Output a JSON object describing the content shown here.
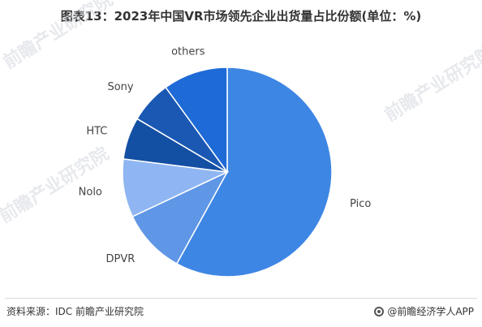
{
  "title": "图表13：2023年中国VR市场领先企业出货量占比份额(单位：%)",
  "footer": {
    "source": "资料来源：IDC 前瞻产业研究院",
    "brand": "@前瞻经济学人APP"
  },
  "watermarks": [
    "前瞻产业研究院",
    "前瞻产业研究院",
    "前瞻产业研究院"
  ],
  "chart_data": {
    "type": "pie",
    "title": "图表13：2023年中国VR市场领先企业出货量占比份额(单位：%)",
    "categories": [
      "Pico",
      "DPVR",
      "Nolo",
      "HTC",
      "Sony",
      "others"
    ],
    "values": [
      58,
      10,
      9,
      6.5,
      6.5,
      10
    ],
    "colors": [
      "#3d86e4",
      "#5f96e6",
      "#8fb6f2",
      "#134fa3",
      "#1a58b4",
      "#1e6ad6"
    ],
    "start": "12 o'clock",
    "direction": "clockwise"
  }
}
